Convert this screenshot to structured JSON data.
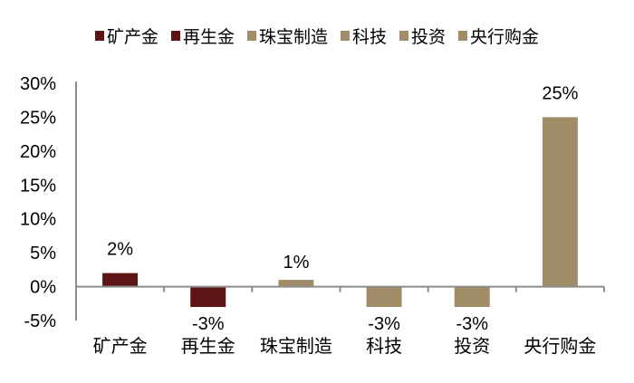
{
  "colors": {
    "dark_red": "#5c1514",
    "khaki": "#a08d68",
    "axis": "#8c8c8c"
  },
  "legend": [
    {
      "label": "矿产金",
      "color": "#5c1514"
    },
    {
      "label": "再生金",
      "color": "#5c1514"
    },
    {
      "label": "珠宝制造",
      "color": "#a08d68"
    },
    {
      "label": "科技",
      "color": "#a08d68"
    },
    {
      "label": "投资",
      "color": "#a08d68"
    },
    {
      "label": "央行购金",
      "color": "#a08d68"
    }
  ],
  "chart_data": {
    "type": "bar",
    "title": "",
    "xlabel": "",
    "ylabel": "",
    "categories": [
      "矿产金",
      "再生金",
      "珠宝制造",
      "科技",
      "投资",
      "央行购金"
    ],
    "values": [
      2,
      -3,
      1,
      -3,
      -3,
      25
    ],
    "data_labels": [
      "2%",
      "-3%",
      "1%",
      "-3%",
      "-3%",
      "25%"
    ],
    "colors": [
      "#5c1514",
      "#5c1514",
      "#a08d68",
      "#a08d68",
      "#a08d68",
      "#a08d68"
    ],
    "ylim": [
      -5,
      30
    ],
    "yticks": [
      -5,
      0,
      5,
      10,
      15,
      20,
      25,
      30
    ],
    "ytick_labels": [
      "-5%",
      "0%",
      "5%",
      "10%",
      "15%",
      "20%",
      "25%",
      "30%"
    ],
    "grid": false,
    "legend_position": "top"
  }
}
